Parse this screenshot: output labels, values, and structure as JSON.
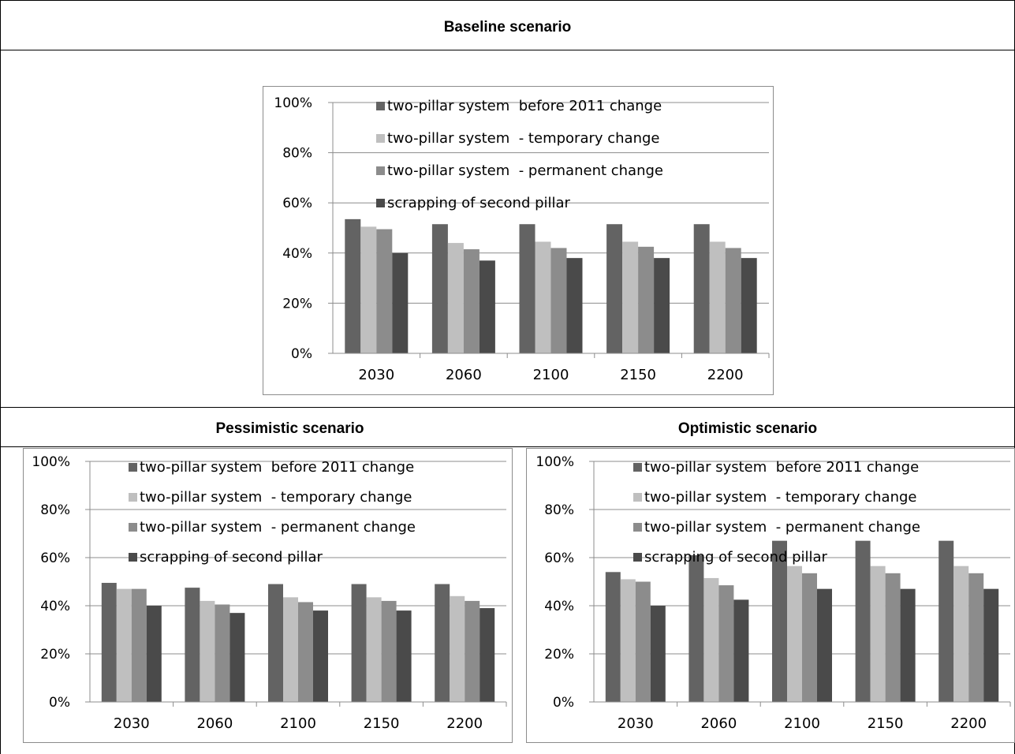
{
  "panels": {
    "top_title": "Baseline scenario",
    "bottom_left_title": "Pessimistic scenario",
    "bottom_right_title": "Optimistic scenario"
  },
  "colors": {
    "series": [
      "#636363",
      "#bfbfbf",
      "#8c8c8c",
      "#4a4a4a"
    ]
  },
  "chart_data": [
    {
      "type": "bar",
      "title": "Baseline scenario",
      "categories": [
        "2030",
        "2060",
        "2100",
        "2150",
        "2200"
      ],
      "ylim": [
        0,
        100
      ],
      "yticks": [
        "0%",
        "20%",
        "40%",
        "60%",
        "80%",
        "100%"
      ],
      "grid": true,
      "legend_position": "top",
      "series": [
        {
          "name": "two-pillar system  before 2011 change",
          "values": [
            53.5,
            51.5,
            51.5,
            51.5,
            51.5
          ]
        },
        {
          "name": "two-pillar system  - temporary change",
          "values": [
            50.5,
            44,
            44.5,
            44.5,
            44.5
          ]
        },
        {
          "name": "two-pillar system  - permanent change",
          "values": [
            49.5,
            41.5,
            42,
            42.5,
            42
          ]
        },
        {
          "name": "scrapping of second pillar",
          "values": [
            40,
            37,
            38,
            38,
            38
          ]
        }
      ]
    },
    {
      "type": "bar",
      "title": "Pessimistic scenario",
      "categories": [
        "2030",
        "2060",
        "2100",
        "2150",
        "2200"
      ],
      "ylim": [
        0,
        100
      ],
      "yticks": [
        "0%",
        "20%",
        "40%",
        "60%",
        "80%",
        "100%"
      ],
      "grid": true,
      "legend_position": "top",
      "series": [
        {
          "name": "two-pillar system  before 2011 change",
          "values": [
            49.5,
            47.5,
            49,
            49,
            49
          ]
        },
        {
          "name": "two-pillar system  - temporary change",
          "values": [
            47,
            42,
            43.5,
            43.5,
            44
          ]
        },
        {
          "name": "two-pillar system  - permanent change",
          "values": [
            47,
            40.5,
            41.5,
            42,
            42
          ]
        },
        {
          "name": "scrapping of second pillar",
          "values": [
            40,
            37,
            38,
            38,
            39
          ]
        }
      ]
    },
    {
      "type": "bar",
      "title": "Optimistic scenario",
      "categories": [
        "2030",
        "2060",
        "2100",
        "2150",
        "2200"
      ],
      "ylim": [
        0,
        100
      ],
      "yticks": [
        "0%",
        "20%",
        "40%",
        "60%",
        "80%",
        "100%"
      ],
      "grid": true,
      "legend_position": "top",
      "series": [
        {
          "name": "two-pillar system  before 2011 change",
          "values": [
            54,
            61,
            67,
            67,
            67
          ]
        },
        {
          "name": "two-pillar system  - temporary change",
          "values": [
            51,
            51.5,
            56.5,
            56.5,
            56.5
          ]
        },
        {
          "name": "two-pillar system  - permanent change",
          "values": [
            50,
            48.5,
            53.5,
            53.5,
            53.5
          ]
        },
        {
          "name": "scrapping of second pillar",
          "values": [
            40,
            42.5,
            47,
            47,
            47
          ]
        }
      ]
    }
  ]
}
